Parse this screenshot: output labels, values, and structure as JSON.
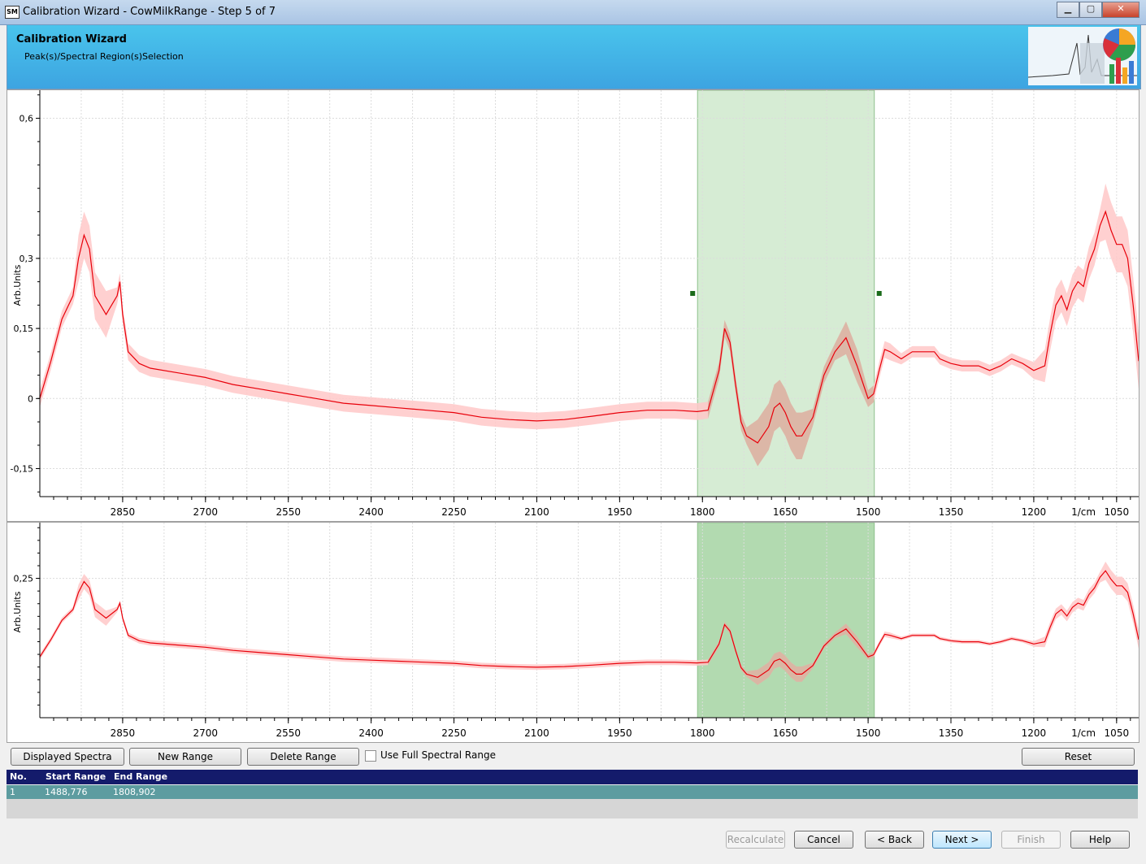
{
  "window": {
    "title": "Calibration Wizard - CowMilkRange - Step 5 of 7",
    "icon_name": "app-logo-icon",
    "icon_text": "SM",
    "minimize_glyph": "▁",
    "maximize_glyph": "▢",
    "close_glyph": "✕"
  },
  "banner": {
    "title": "Calibration Wizard",
    "subtitle": "Peak(s)/Spectral Region(s)Selection",
    "art_icon": "spectrum-chart-logo-icon"
  },
  "chart_data": [
    {
      "type": "line",
      "ylabel": "Arb.Units",
      "xlabel": "",
      "x_unit_label": "1/cm",
      "x_reversed": true,
      "xlim": [
        3000,
        1010
      ],
      "ylim": [
        -0.21,
        0.66
      ],
      "y_ticks": [
        0.6,
        0.3,
        0.15,
        0,
        -0.15
      ],
      "y_tick_labels": [
        "0,6",
        "0,3",
        "0,15",
        "0",
        "-0,15"
      ],
      "x_ticks": [
        2850,
        2700,
        2550,
        2400,
        2250,
        2100,
        1950,
        1800,
        1650,
        1500,
        1350,
        1200,
        1050
      ],
      "grid": true,
      "selected_range": [
        1808.902,
        1488.776
      ],
      "series": [
        {
          "role": "mean",
          "color": "#e8000a",
          "x": [
            3000,
            2980,
            2960,
            2940,
            2930,
            2920,
            2910,
            2900,
            2880,
            2860,
            2855,
            2850,
            2840,
            2820,
            2800,
            2750,
            2700,
            2650,
            2600,
            2550,
            2500,
            2450,
            2400,
            2350,
            2300,
            2250,
            2200,
            2150,
            2100,
            2050,
            2000,
            1950,
            1900,
            1850,
            1810,
            1790,
            1770,
            1760,
            1750,
            1740,
            1730,
            1720,
            1700,
            1680,
            1670,
            1660,
            1650,
            1640,
            1630,
            1620,
            1600,
            1580,
            1560,
            1540,
            1520,
            1500,
            1490,
            1480,
            1470,
            1460,
            1440,
            1420,
            1400,
            1380,
            1370,
            1350,
            1330,
            1300,
            1280,
            1260,
            1240,
            1220,
            1200,
            1180,
            1170,
            1160,
            1150,
            1140,
            1130,
            1120,
            1110,
            1100,
            1090,
            1080,
            1070,
            1060,
            1050,
            1040,
            1030,
            1020,
            1010
          ],
          "y": [
            0.0,
            0.08,
            0.17,
            0.22,
            0.3,
            0.35,
            0.32,
            0.22,
            0.18,
            0.22,
            0.25,
            0.18,
            0.1,
            0.075,
            0.065,
            0.055,
            0.045,
            0.03,
            0.02,
            0.01,
            0.0,
            -0.01,
            -0.015,
            -0.02,
            -0.025,
            -0.03,
            -0.04,
            -0.045,
            -0.048,
            -0.045,
            -0.038,
            -0.03,
            -0.025,
            -0.025,
            -0.028,
            -0.025,
            0.06,
            0.15,
            0.12,
            0.03,
            -0.05,
            -0.08,
            -0.095,
            -0.06,
            -0.02,
            -0.01,
            -0.03,
            -0.06,
            -0.08,
            -0.08,
            -0.04,
            0.05,
            0.1,
            0.13,
            0.07,
            0.0,
            0.01,
            0.06,
            0.105,
            0.1,
            0.085,
            0.1,
            0.1,
            0.1,
            0.085,
            0.075,
            0.07,
            0.07,
            0.06,
            0.07,
            0.085,
            0.075,
            0.06,
            0.07,
            0.14,
            0.2,
            0.22,
            0.19,
            0.23,
            0.25,
            0.24,
            0.29,
            0.32,
            0.37,
            0.4,
            0.36,
            0.33,
            0.33,
            0.3,
            0.2,
            0.08
          ]
        }
      ]
    },
    {
      "type": "line",
      "ylabel": "Arb.Units",
      "xlabel": "",
      "x_unit_label": "1/cm",
      "x_reversed": true,
      "xlim": [
        3000,
        1010
      ],
      "ylim": [
        -0.3,
        0.47
      ],
      "y_ticks": [
        0.25
      ],
      "y_tick_labels": [
        "0,25"
      ],
      "x_ticks": [
        2850,
        2700,
        2550,
        2400,
        2250,
        2100,
        1950,
        1800,
        1650,
        1500,
        1350,
        1200,
        1050
      ],
      "grid": true,
      "selected_range": [
        1808.902,
        1488.776
      ]
    }
  ],
  "x_tick_labels": [
    "2850",
    "2700",
    "2550",
    "2400",
    "2250",
    "2100",
    "1950",
    "1800",
    "1650",
    "1500",
    "1350",
    "1200",
    "1050"
  ],
  "toolbar": {
    "displayed_spectra": "Displayed Spectra",
    "new_range": "New Range",
    "delete_range": "Delete Range",
    "use_full_label": "Use Full Spectral Range",
    "reset": "Reset"
  },
  "ranges_table": {
    "headers": [
      "No.",
      "Start Range",
      "End Range"
    ],
    "rows": [
      {
        "no": "1",
        "start": "1488,776",
        "end": "1808,902"
      }
    ]
  },
  "footer": {
    "recalculate": "Recalculate",
    "cancel": "Cancel",
    "back": "< Back",
    "next": "Next >",
    "finish": "Finish",
    "help": "Help"
  },
  "colors": {
    "mean_line": "#e8000a",
    "std_band": "#ffc8c8",
    "overlap_band": "#c8a890",
    "selection_top": "#d6ecd4",
    "selection_bottom": "#b2dab0",
    "banner": "#43b4e8",
    "grid_header": "#141b6b",
    "selected_row": "#5d9ca0"
  }
}
